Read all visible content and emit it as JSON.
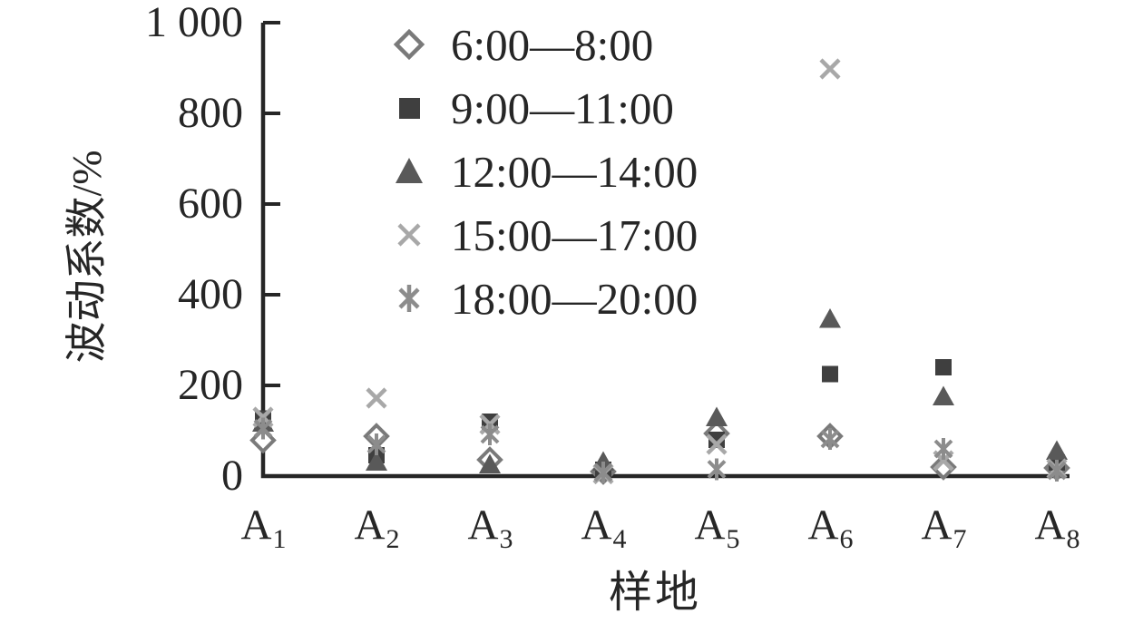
{
  "chart_data": {
    "type": "scatter",
    "title": "",
    "xlabel": "样地",
    "ylabel": "波动系数/%",
    "categories": [
      "A1",
      "A2",
      "A3",
      "A4",
      "A5",
      "A6",
      "A7",
      "A8"
    ],
    "ylim": [
      0,
      1000
    ],
    "yticks": [
      0,
      200,
      400,
      600,
      800,
      1000
    ],
    "ytick_labels": [
      "0",
      "200",
      "400",
      "600",
      "800",
      "1 000"
    ],
    "grid": false,
    "legend_position": "upper-left-inside",
    "background_color": "#ffffff",
    "axis_color": "#262626",
    "series": [
      {
        "name": "6:00—8:00",
        "marker": "diamond-open",
        "color": "#7a7a7a",
        "values": [
          79,
          88,
          36,
          10,
          94,
          88,
          20,
          18
        ]
      },
      {
        "name": "9:00—11:00",
        "marker": "square-filled",
        "color": "#3f3f3f",
        "values": [
          127,
          46,
          120,
          14,
          80,
          225,
          240,
          30
        ]
      },
      {
        "name": "12:00—14:00",
        "marker": "triangle-filled",
        "color": "#595959",
        "values": [
          118,
          32,
          26,
          32,
          130,
          347,
          176,
          56
        ]
      },
      {
        "name": "15:00—17:00",
        "marker": "x",
        "color": "#a8a8a8",
        "values": [
          130,
          172,
          114,
          5,
          70,
          898,
          34,
          16
        ]
      },
      {
        "name": "18:00—20:00",
        "marker": "asterisk",
        "color": "#8c8c8c",
        "values": [
          105,
          70,
          92,
          8,
          15,
          82,
          60,
          12
        ]
      }
    ]
  }
}
